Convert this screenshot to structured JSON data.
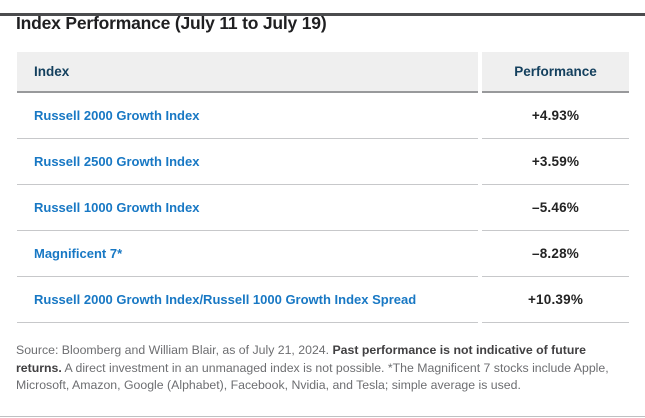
{
  "page": {
    "title": "Index Performance (July 11 to July 19)"
  },
  "table": {
    "columns": {
      "index_label": "Index",
      "performance_label": "Performance"
    },
    "rows": [
      {
        "index": "Russell 2000 Growth Index",
        "performance": "+4.93%"
      },
      {
        "index": "Russell 2500 Growth Index",
        "performance": "+3.59%"
      },
      {
        "index": "Russell 1000 Growth Index",
        "performance": "–5.46%"
      },
      {
        "index": "Magnificent 7*",
        "performance": "–8.28%"
      },
      {
        "index": "Russell 2000 Growth Index/Russell 1000 Growth Index Spread",
        "performance": "+10.39%"
      }
    ]
  },
  "chart_data": {
    "type": "table",
    "title": "Index Performance (July 11 to July 19)",
    "columns": [
      "Index",
      "Performance"
    ],
    "categories": [
      "Russell 2000 Growth Index",
      "Russell 2500 Growth Index",
      "Russell 1000 Growth Index",
      "Magnificent 7*",
      "Russell 2000 Growth Index/Russell 1000 Growth Index Spread"
    ],
    "values_pct": [
      4.93,
      3.59,
      -5.46,
      -8.28,
      10.39
    ]
  },
  "footnote": {
    "source_segment": "Source: Bloomberg and William Blair, as of July 21, 2024. ",
    "bold_segment": "Past performance is not indicative of future returns.",
    "remainder_segment": " A direct investment in an unmanaged index is not possible. *The Magnificent 7 stocks include Apple, Microsoft, Amazon, Google (Alphabet), Facebook, Nvidia, and Tesla; simple average is used."
  },
  "colors": {
    "top_bar": "#4b4c4e",
    "header_background": "#efefef",
    "header_text_navy": "#14405e",
    "index_link_blue": "#1878c4",
    "value_text": "#232323",
    "row_border": "#c7c8ca",
    "header_border": "#98999b",
    "footnote_gray": "#6d6e71",
    "footnote_bold": "#414042"
  }
}
